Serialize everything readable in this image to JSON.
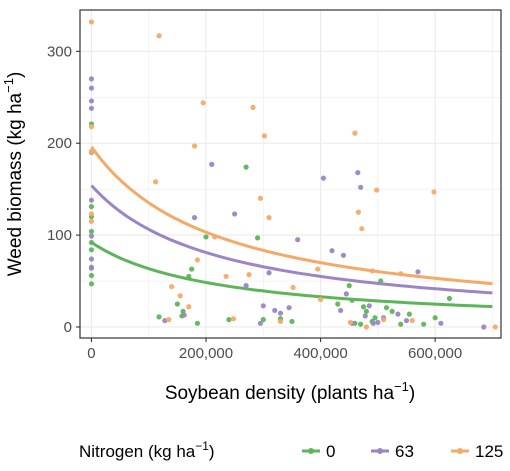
{
  "chart_data": {
    "type": "scatter",
    "xlabel": "Soybean density (plants ha",
    "xlabel_sup": "−1",
    "xlabel_end": ")",
    "ylabel": "Weed biomass (kg ha",
    "ylabel_sup": "−1",
    "ylabel_end": ")",
    "xlim": [
      -20000,
      715000
    ],
    "ylim": [
      -12,
      345
    ],
    "x_ticks": [
      0,
      200000,
      400000,
      600000
    ],
    "x_tick_labels": [
      "0",
      "200,000",
      "400,000",
      "600,000"
    ],
    "y_ticks": [
      0,
      100,
      200,
      300
    ],
    "y_tick_labels": [
      "0",
      "100",
      "200",
      "300"
    ],
    "grid": true,
    "legend": {
      "position": "bottom",
      "title": "Nitrogen (kg ha",
      "title_sup": "−1",
      "title_end": ")",
      "entries": [
        "0",
        "63",
        "125"
      ]
    },
    "series": [
      {
        "name": "0",
        "color": "#5db55a",
        "fit": {
          "model": "hyperbolic",
          "a": 92,
          "b": 4.5e-06,
          "x_range": [
            0,
            700000
          ]
        },
        "points": [
          [
            0,
            47
          ],
          [
            0,
            56
          ],
          [
            0,
            65
          ],
          [
            0,
            84
          ],
          [
            0,
            92
          ],
          [
            0,
            104
          ],
          [
            0,
            120
          ],
          [
            0,
            131
          ],
          [
            0,
            221
          ],
          [
            118000,
            11
          ],
          [
            150000,
            25
          ],
          [
            158000,
            12
          ],
          [
            160000,
            17
          ],
          [
            170000,
            55
          ],
          [
            175000,
            63
          ],
          [
            185000,
            4
          ],
          [
            200000,
            98
          ],
          [
            240000,
            8
          ],
          [
            270000,
            174
          ],
          [
            290000,
            97
          ],
          [
            300000,
            8
          ],
          [
            330000,
            9
          ],
          [
            350000,
            6
          ],
          [
            430000,
            25
          ],
          [
            450000,
            45
          ],
          [
            455000,
            29
          ],
          [
            460000,
            4
          ],
          [
            470000,
            3
          ],
          [
            475000,
            22
          ],
          [
            480000,
            17
          ],
          [
            490000,
            6
          ],
          [
            495000,
            10
          ],
          [
            505000,
            50
          ],
          [
            515000,
            21
          ],
          [
            525000,
            17
          ],
          [
            540000,
            3
          ],
          [
            555000,
            14
          ],
          [
            580000,
            3
          ],
          [
            600000,
            10
          ],
          [
            625000,
            31
          ]
        ]
      },
      {
        "name": "63",
        "color": "#9b85c6",
        "fit": {
          "model": "hyperbolic",
          "a": 154,
          "b": 4.5e-06,
          "x_range": [
            0,
            700000
          ]
        },
        "points": [
          [
            0,
            64
          ],
          [
            0,
            74
          ],
          [
            0,
            99
          ],
          [
            0,
            138
          ],
          [
            0,
            190
          ],
          [
            0,
            238
          ],
          [
            0,
            246
          ],
          [
            0,
            260
          ],
          [
            0,
            270
          ],
          [
            128000,
            7
          ],
          [
            162000,
            13
          ],
          [
            180000,
            119
          ],
          [
            210000,
            177
          ],
          [
            250000,
            123
          ],
          [
            270000,
            45
          ],
          [
            295000,
            4
          ],
          [
            300000,
            23
          ],
          [
            310000,
            59
          ],
          [
            320000,
            18
          ],
          [
            330000,
            15
          ],
          [
            345000,
            21
          ],
          [
            360000,
            95
          ],
          [
            405000,
            162
          ],
          [
            420000,
            83
          ],
          [
            435000,
            18
          ],
          [
            440000,
            78
          ],
          [
            445000,
            36
          ],
          [
            455000,
            4
          ],
          [
            465000,
            168
          ],
          [
            470000,
            152
          ],
          [
            478000,
            12
          ],
          [
            485000,
            23
          ],
          [
            492000,
            4
          ],
          [
            500000,
            5
          ],
          [
            510000,
            10
          ],
          [
            535000,
            14
          ],
          [
            550000,
            7
          ],
          [
            570000,
            60
          ],
          [
            610000,
            4
          ],
          [
            685000,
            0
          ]
        ]
      },
      {
        "name": "125",
        "color": "#f5a966",
        "fit": {
          "model": "hyperbolic",
          "a": 196,
          "b": 4.5e-06,
          "x_range": [
            0,
            700000
          ]
        },
        "points": [
          [
            0,
            115
          ],
          [
            0,
            123
          ],
          [
            0,
            191
          ],
          [
            0,
            218
          ],
          [
            0,
            332
          ],
          [
            112000,
            158
          ],
          [
            118000,
            317
          ],
          [
            135000,
            8
          ],
          [
            140000,
            44
          ],
          [
            155000,
            34
          ],
          [
            170000,
            22
          ],
          [
            180000,
            197
          ],
          [
            185000,
            73
          ],
          [
            195000,
            244
          ],
          [
            215000,
            98
          ],
          [
            235000,
            55
          ],
          [
            248000,
            9
          ],
          [
            275000,
            57
          ],
          [
            282000,
            239
          ],
          [
            295000,
            140
          ],
          [
            302000,
            208
          ],
          [
            310000,
            119
          ],
          [
            330000,
            6
          ],
          [
            352000,
            43
          ],
          [
            395000,
            63
          ],
          [
            400000,
            30
          ],
          [
            452000,
            5
          ],
          [
            460000,
            211
          ],
          [
            466000,
            125
          ],
          [
            472000,
            107
          ],
          [
            480000,
            0
          ],
          [
            490000,
            61
          ],
          [
            498000,
            149
          ],
          [
            510000,
            8
          ],
          [
            540000,
            58
          ],
          [
            560000,
            7
          ],
          [
            598000,
            147
          ],
          [
            705000,
            0
          ]
        ]
      }
    ]
  }
}
